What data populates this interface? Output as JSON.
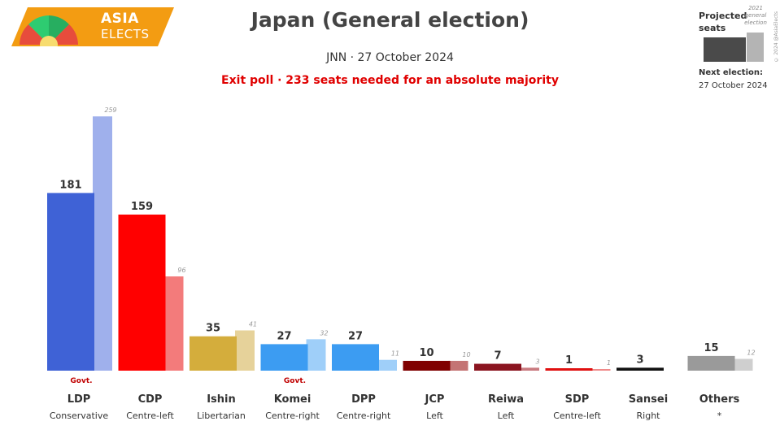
{
  "logo": {
    "line1": "ASIA",
    "line2": "ELECTS"
  },
  "header": {
    "title": "Japan (General election)",
    "subtitle": "JNN · 27 October 2024",
    "note": "Exit poll · 233 seats needed for an absolute majority"
  },
  "legend": {
    "projected_label": "Projected seats",
    "previous_label": "2021 general election",
    "credit": "© 2024 @AsiaElects",
    "next_election_label": "Next election:",
    "next_election_date": "27 October 2024"
  },
  "chart_data": {
    "type": "bar",
    "categories": [
      "LDP",
      "CDP",
      "Ishin",
      "Komei",
      "DPP",
      "JCP",
      "Reiwa",
      "SDP",
      "Sansei",
      "Others"
    ],
    "ideologies": [
      "Conservative",
      "Centre-left",
      "Libertarian",
      "Centre-right",
      "Centre-right",
      "Left",
      "Left",
      "Centre-left",
      "Right",
      "*"
    ],
    "series": [
      {
        "name": "Projected seats",
        "values": [
          181,
          159,
          35,
          27,
          27,
          10,
          7,
          1,
          3,
          15
        ]
      },
      {
        "name": "2021 general election",
        "values": [
          259,
          96,
          41,
          32,
          11,
          10,
          3,
          1,
          null,
          12
        ]
      }
    ],
    "colors": [
      "#3f62d6",
      "#ff0000",
      "#d4ad3c",
      "#3c9cf2",
      "#3c9cf2",
      "#800000",
      "#8b1520",
      "#e01010",
      "#111111",
      "#9a9a9a"
    ],
    "prev_colors": [
      "#9fb0ec",
      "#f37b7b",
      "#e6d29a",
      "#9fcff9",
      "#9fcff9",
      "#c47474",
      "#c97a7f",
      "#ef8a8a",
      "#888888",
      "#cfcfcf"
    ],
    "government": [
      "Govt.",
      "",
      "",
      "Govt.",
      "",
      "",
      "",
      "",
      "",
      ""
    ],
    "ylim": [
      0,
      260
    ]
  }
}
